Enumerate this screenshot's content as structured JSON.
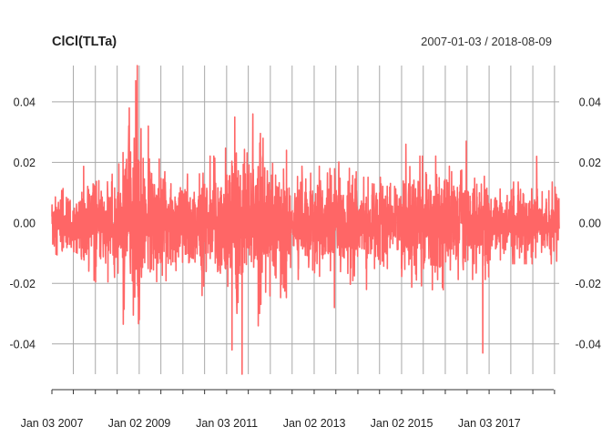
{
  "chart_data": {
    "type": "line",
    "title": "ClCl(TLTa)",
    "date_range": "2007-01-03 / 2018-08-09",
    "x_start": "2007-01-03",
    "x_end": "2018-08-09",
    "x_tick_labels": [
      "Jan 03 2007",
      "Jan 02 2009",
      "Jan 03 2011",
      "Jan 02 2013",
      "Jan 02 2015",
      "Jan 03 2017"
    ],
    "x_tick_dates": [
      "2007-01-03",
      "2009-01-02",
      "2011-01-03",
      "2013-01-02",
      "2015-01-02",
      "2017-01-03"
    ],
    "ylim": [
      -0.05,
      0.052
    ],
    "y_ticks": [
      0.04,
      0.02,
      0.0,
      -0.02,
      -0.04
    ],
    "y_tick_labels": [
      "0.04",
      "0.02",
      "0.00",
      "-0.02",
      "-0.04"
    ],
    "grid": true,
    "series": [
      {
        "color": "#FF6666",
        "volatility_regimes": [
          {
            "from": "2007-01-03",
            "to": "2007-09-01",
            "sd": 0.0045
          },
          {
            "from": "2007-09-01",
            "to": "2008-08-15",
            "sd": 0.0075
          },
          {
            "from": "2008-08-15",
            "to": "2009-02-01",
            "sd": 0.0135
          },
          {
            "from": "2009-02-01",
            "to": "2009-09-01",
            "sd": 0.0095
          },
          {
            "from": "2009-09-01",
            "to": "2010-05-01",
            "sd": 0.0075
          },
          {
            "from": "2010-05-01",
            "to": "2010-12-15",
            "sd": 0.0085
          },
          {
            "from": "2010-12-15",
            "to": "2011-10-15",
            "sd": 0.0115
          },
          {
            "from": "2011-10-15",
            "to": "2012-06-01",
            "sd": 0.0095
          },
          {
            "from": "2012-06-01",
            "to": "2013-05-01",
            "sd": 0.0072
          },
          {
            "from": "2013-05-01",
            "to": "2014-01-01",
            "sd": 0.0078
          },
          {
            "from": "2014-01-01",
            "to": "2015-01-01",
            "sd": 0.0058
          },
          {
            "from": "2015-01-01",
            "to": "2016-01-01",
            "sd": 0.0085
          },
          {
            "from": "2016-01-01",
            "to": "2017-01-01",
            "sd": 0.0072
          },
          {
            "from": "2017-01-01",
            "to": "2018-08-09",
            "sd": 0.0052
          }
        ],
        "notable_points": [
          {
            "date": "2008-12-16",
            "value": 0.052
          },
          {
            "date": "2008-12-03",
            "value": 0.047
          },
          {
            "date": "2008-10-10",
            "value": 0.038
          },
          {
            "date": "2009-03-18",
            "value": 0.032
          },
          {
            "date": "2009-01-02",
            "value": -0.032
          },
          {
            "date": "2008-11-20",
            "value": 0.028
          },
          {
            "date": "2011-03-10",
            "value": 0.035
          },
          {
            "date": "2011-08-08",
            "value": 0.036
          },
          {
            "date": "2011-05-10",
            "value": -0.05
          },
          {
            "date": "2011-02-15",
            "value": -0.042
          },
          {
            "date": "2011-11-01",
            "value": 0.028
          },
          {
            "date": "2011-09-22",
            "value": -0.034
          },
          {
            "date": "2013-06-19",
            "value": -0.028
          },
          {
            "date": "2015-02-06",
            "value": 0.026
          },
          {
            "date": "2016-06-24",
            "value": 0.027
          },
          {
            "date": "2016-11-09",
            "value": -0.043
          },
          {
            "date": "2018-02-02",
            "value": 0.022
          },
          {
            "date": "2010-06-10",
            "value": -0.024
          },
          {
            "date": "2012-05-15",
            "value": 0.024
          },
          {
            "date": "2014-03-15",
            "value": -0.022
          }
        ]
      }
    ]
  }
}
